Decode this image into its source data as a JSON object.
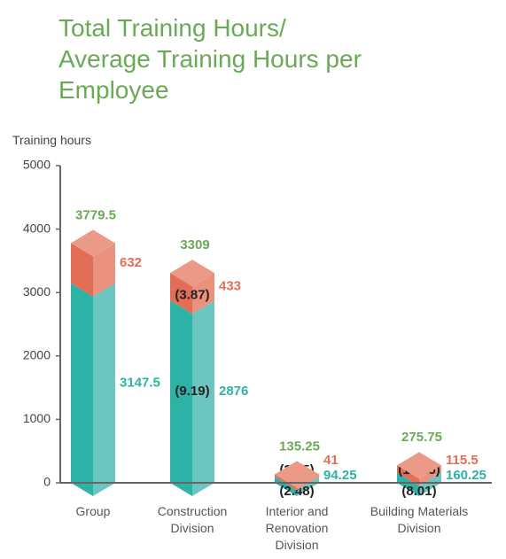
{
  "chart_data": {
    "type": "bar3d_stacked",
    "title": "Total Training Hours/ Average Training Hours per Employee",
    "y_label": "Training hours",
    "categories": [
      "Group",
      "Construction Division",
      "Interior and Renovation Division",
      "Building Materials Division"
    ],
    "series": [
      {
        "color": "#2db2a6",
        "values": [
          3147.5,
          2876,
          94.25,
          160.25
        ],
        "average_values": [
          null,
          9.19,
          2.48,
          8.01
        ],
        "average_labels": [
          null,
          "(9.19)",
          "(2.48)",
          "(8.01)"
        ]
      },
      {
        "color": "#e36e57",
        "values": [
          632,
          433,
          41,
          115.5
        ],
        "average_values": [
          null,
          3.87,
          3.15,
          19.25
        ],
        "average_labels": [
          null,
          "(3.87)",
          "(3.15)",
          "(19.25)"
        ]
      }
    ],
    "totals": [
      3779.5,
      3309,
      135.25,
      275.75
    ],
    "total_color": "#6aaa57",
    "ylim": [
      0,
      5000
    ],
    "yticks": [
      0,
      1000,
      2000,
      3000,
      4000,
      5000
    ],
    "grid": false
  }
}
